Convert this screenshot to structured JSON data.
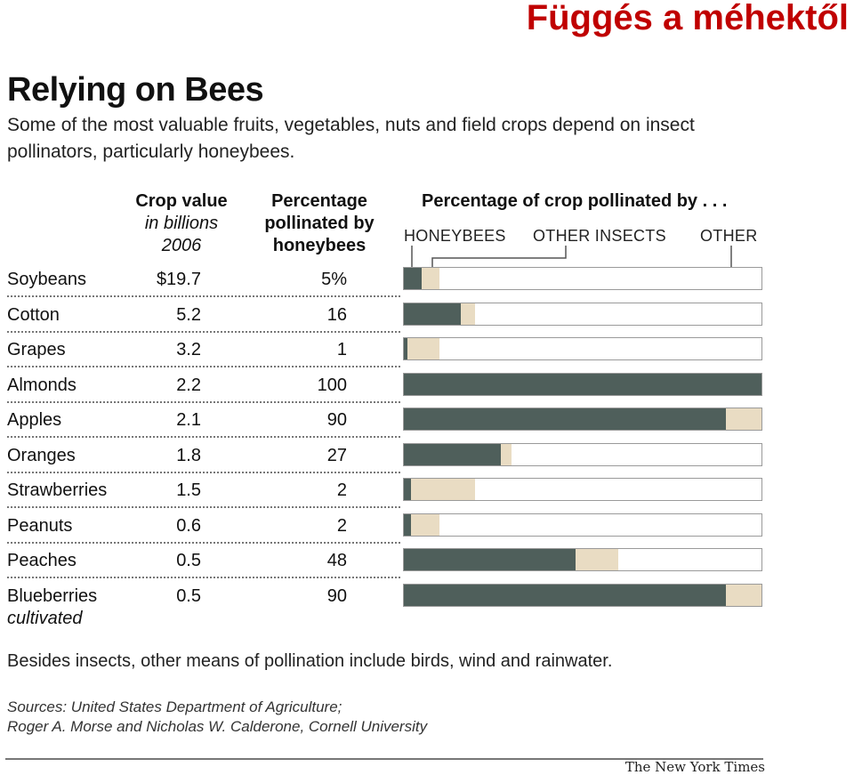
{
  "slide_title": "Függés a méhektől",
  "title": "Relying on Bees",
  "subtitle": "Some of the most valuable fruits, vegetables, nuts and field crops depend on insect pollinators, particularly honeybees.",
  "columns": {
    "value_line1": "Crop value",
    "value_line2": "in billions",
    "value_line3": "2006",
    "pct_line1": "Percentage",
    "pct_line2": "pollinated by",
    "pct_line3": "honeybees",
    "chart_header": "Percentage of crop pollinated by . . ."
  },
  "legend": {
    "honeybees": "HONEYBEES",
    "other_insects": "OTHER INSECTS",
    "other": "OTHER"
  },
  "colors": {
    "honeybees": "#4f5f5b",
    "other_insects": "#e9dcc3",
    "other": "#ffffff"
  },
  "rows": [
    {
      "crop": "Soybeans",
      "value": "$19.7",
      "pct": "5%",
      "sub": ""
    },
    {
      "crop": "Cotton",
      "value": "5.2",
      "pct": "16",
      "sub": ""
    },
    {
      "crop": "Grapes",
      "value": "3.2",
      "pct": "1",
      "sub": ""
    },
    {
      "crop": "Almonds",
      "value": "2.2",
      "pct": "100",
      "sub": ""
    },
    {
      "crop": "Apples",
      "value": "2.1",
      "pct": "90",
      "sub": ""
    },
    {
      "crop": "Oranges",
      "value": "1.8",
      "pct": "27",
      "sub": ""
    },
    {
      "crop": "Strawberries",
      "value": "1.5",
      "pct": "2",
      "sub": ""
    },
    {
      "crop": "Peanuts",
      "value": "0.6",
      "pct": "2",
      "sub": ""
    },
    {
      "crop": "Peaches",
      "value": "0.5",
      "pct": "48",
      "sub": ""
    },
    {
      "crop": "Blueberries",
      "value": "0.5",
      "pct": "90",
      "sub": "cultivated"
    }
  ],
  "chart_data": {
    "type": "bar",
    "orientation": "horizontal",
    "stacked": true,
    "title": "Relying on Bees",
    "categories": [
      "Soybeans",
      "Cotton",
      "Grapes",
      "Almonds",
      "Apples",
      "Oranges",
      "Strawberries",
      "Peanuts",
      "Peaches",
      "Blueberries"
    ],
    "crop_value_billions_2006": [
      19.7,
      5.2,
      3.2,
      2.2,
      2.1,
      1.8,
      1.5,
      0.6,
      0.5,
      0.5
    ],
    "series": [
      {
        "name": "HONEYBEES",
        "values": [
          5,
          16,
          1,
          100,
          90,
          27,
          2,
          2,
          48,
          90
        ]
      },
      {
        "name": "OTHER INSECTS",
        "values": [
          5,
          4,
          9,
          0,
          10,
          3,
          18,
          8,
          12,
          10
        ]
      },
      {
        "name": "OTHER",
        "values": [
          90,
          80,
          90,
          0,
          0,
          70,
          80,
          90,
          40,
          0
        ]
      }
    ],
    "xlim": [
      0,
      100
    ],
    "legend": "top"
  },
  "footnote": "Besides insects, other means of pollination include birds, wind and rainwater.",
  "sources_line1": "Sources: United States Department of Agriculture;",
  "sources_line2": "Roger A. Morse and Nicholas W. Calderone, Cornell University",
  "credit": "The New York Times"
}
